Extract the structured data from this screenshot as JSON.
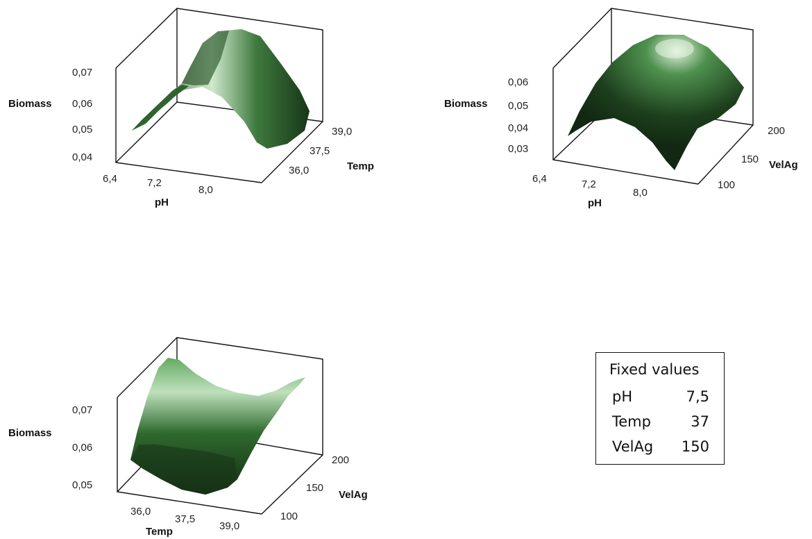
{
  "chart_data": [
    {
      "type": "surface",
      "zlabel": "Biomass",
      "xlabel": "pH",
      "ylabel": "Temp",
      "x_ticks": [
        "6,4",
        "7,2",
        "8,0"
      ],
      "y_ticks": [
        "36,0",
        "37,5",
        "39,0"
      ],
      "z_ticks": [
        "0,04",
        "0,05",
        "0,06",
        "0,07"
      ],
      "x_range": [
        6.4,
        8.6
      ],
      "y_range": [
        35.5,
        39.5
      ],
      "z_range": [
        0.04,
        0.08
      ],
      "surface": "quadratic, maximum near pH 7.5 and Temp 37"
    },
    {
      "type": "surface",
      "zlabel": "Biomass",
      "xlabel": "pH",
      "ylabel": "VelAg",
      "x_ticks": [
        "6,4",
        "7,2",
        "8,0"
      ],
      "y_ticks": [
        "100",
        "150",
        "200"
      ],
      "z_ticks": [
        "0,03",
        "0,04",
        "0,05",
        "0,06"
      ],
      "x_range": [
        6.4,
        8.6
      ],
      "y_range": [
        90,
        215
      ],
      "z_range": [
        0.025,
        0.07
      ],
      "surface": "quadratic dome, maximum near pH 7.5 and VelAg 150"
    },
    {
      "type": "surface",
      "zlabel": "Biomass",
      "xlabel": "Temp",
      "ylabel": "VelAg",
      "x_ticks": [
        "36,0",
        "37,5",
        "39,0"
      ],
      "y_ticks": [
        "100",
        "150",
        "200"
      ],
      "z_ticks": [
        "0,05",
        "0,06",
        "0,07"
      ],
      "x_range": [
        35.5,
        39.5
      ],
      "y_range": [
        90,
        215
      ],
      "z_range": [
        0.05,
        0.075
      ],
      "surface": "saddle-like, minimum near Temp 37.5 at low VelAg"
    }
  ],
  "fixed_values": {
    "title": "Fixed values",
    "rows": [
      {
        "name": "pH",
        "value": "7,5"
      },
      {
        "name": "Temp",
        "value": "37"
      },
      {
        "name": "VelAg",
        "value": "150"
      }
    ]
  },
  "colors": {
    "surface_dark": "#1a3a1a",
    "surface_light": "#e9f5e6",
    "surface_mid": "#4f8f4f"
  }
}
